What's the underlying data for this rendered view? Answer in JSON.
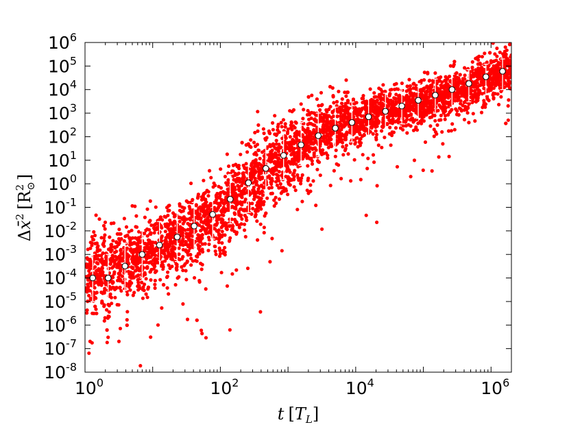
{
  "chart_data": {
    "type": "scatter",
    "xscale": "log",
    "yscale": "log",
    "xlim": [
      1,
      2000000
    ],
    "ylim": [
      1e-08,
      1000000
    ],
    "xlabel_parts": [
      "t",
      "[",
      "T",
      "L",
      "]"
    ],
    "ylabel_parts": [
      "Δ",
      "x̄",
      "2",
      "[",
      "R",
      "⊙",
      "2",
      "]"
    ],
    "grid": false,
    "colors": {
      "scatter": "#ff0000",
      "mean_marker_fill": "#ffffff",
      "errorbar": "#ffffff",
      "axes": "#000000"
    },
    "x_ticks": [
      {
        "value": 1,
        "base": "10",
        "exp": "0"
      },
      {
        "value": 100,
        "base": "10",
        "exp": "2"
      },
      {
        "value": 10000,
        "base": "10",
        "exp": "4"
      },
      {
        "value": 1000000,
        "base": "10",
        "exp": "6"
      }
    ],
    "y_ticks": [
      {
        "value": 1e-08,
        "base": "10",
        "exp": "-8"
      },
      {
        "value": 1e-07,
        "base": "10",
        "exp": "-7"
      },
      {
        "value": 1e-06,
        "base": "10",
        "exp": "-6"
      },
      {
        "value": 1e-05,
        "base": "10",
        "exp": "-5"
      },
      {
        "value": 0.0001,
        "base": "10",
        "exp": "-4"
      },
      {
        "value": 0.001,
        "base": "10",
        "exp": "-3"
      },
      {
        "value": 0.01,
        "base": "10",
        "exp": "-2"
      },
      {
        "value": 0.1,
        "base": "10",
        "exp": "-1"
      },
      {
        "value": 1,
        "base": "10",
        "exp": "0"
      },
      {
        "value": 10,
        "base": "10",
        "exp": "1"
      },
      {
        "value": 100,
        "base": "10",
        "exp": "2"
      },
      {
        "value": 1000,
        "base": "10",
        "exp": "3"
      },
      {
        "value": 10000,
        "base": "10",
        "exp": "4"
      },
      {
        "value": 100000,
        "base": "10",
        "exp": "5"
      },
      {
        "value": 1000000,
        "base": "10",
        "exp": "6"
      }
    ],
    "mean_series": {
      "x": [
        1.3,
        2.2,
        3.9,
        7.0,
        12.6,
        23,
        41,
        77,
        140,
        260,
        470,
        860,
        1560,
        2800,
        5000,
        8800,
        15500,
        27500,
        48000,
        84000,
        150000,
        265000,
        470000,
        840000,
        1480000
      ],
      "y": [
        0.0001,
        0.0001,
        0.00032,
        0.001,
        0.0025,
        0.0055,
        0.016,
        0.05,
        0.22,
        1.1,
        4.5,
        16,
        45,
        110,
        230,
        400,
        700,
        1200,
        2000,
        3500,
        5800,
        10000,
        18000,
        35000,
        60000
      ],
      "y_low": [
        1e-05,
        1e-05,
        3e-05,
        0.0001,
        0.00025,
        0.0005,
        0.0015,
        0.0045,
        0.02,
        0.06,
        0.4,
        1.5,
        6,
        14,
        35,
        60,
        110,
        200,
        350,
        600,
        1000,
        1800,
        3000,
        6000,
        10000
      ],
      "y_high": [
        0.001,
        0.001,
        0.003,
        0.01,
        0.025,
        0.06,
        0.16,
        0.5,
        2.5,
        12,
        45,
        160,
        400,
        1000,
        1800,
        3000,
        4500,
        7000,
        11000,
        18000,
        28000,
        45000,
        70000,
        120000,
        200000
      ]
    },
    "scatter_band": {
      "x": [
        1,
        3,
        10,
        30,
        100,
        300,
        1000,
        3000,
        10000,
        30000,
        100000,
        300000,
        1000000,
        2000000
      ],
      "center": [
        0.0001,
        0.0003,
        0.002,
        0.008,
        0.06,
        1.5,
        20,
        150,
        500,
        1500,
        3500,
        9000,
        30000,
        80000
      ],
      "spread_decades": [
        1.4,
        1.4,
        1.3,
        1.3,
        1.4,
        1.5,
        1.4,
        1.1,
        0.9,
        0.8,
        0.8,
        0.8,
        0.8,
        0.8
      ]
    }
  }
}
